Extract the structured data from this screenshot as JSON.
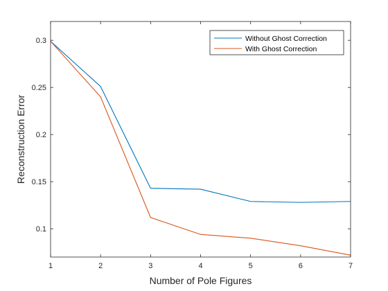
{
  "chart_data": {
    "type": "line",
    "title": "",
    "xlabel": "Number of Pole Figures",
    "ylabel": "Reconstruction Error",
    "x": [
      1,
      2,
      3,
      4,
      5,
      6,
      7
    ],
    "xlim": [
      1,
      7
    ],
    "ylim": [
      0.07,
      0.32
    ],
    "xticks": [
      1,
      2,
      3,
      4,
      5,
      6,
      7
    ],
    "yticks": [
      0.1,
      0.15,
      0.2,
      0.25,
      0.3
    ],
    "grid": false,
    "box": true,
    "legend_position": "top-right",
    "series": [
      {
        "name": "Without Ghost Correction",
        "color": "#0072BD",
        "values": [
          0.299,
          0.251,
          0.143,
          0.142,
          0.129,
          0.128,
          0.129
        ]
      },
      {
        "name": "With Ghost Correction",
        "color": "#D95319",
        "values": [
          0.299,
          0.24,
          0.112,
          0.094,
          0.09,
          0.082,
          0.072
        ]
      }
    ]
  }
}
